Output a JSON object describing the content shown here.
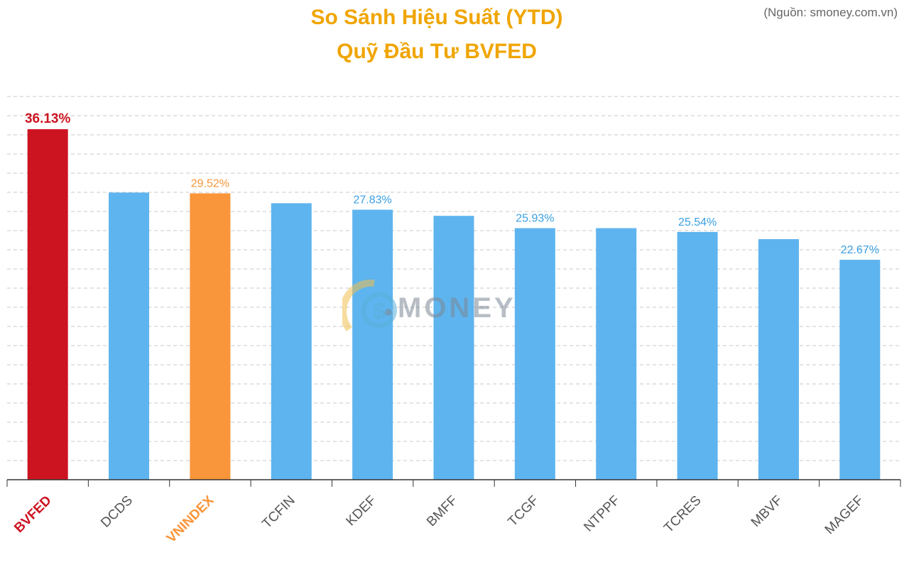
{
  "header": {
    "title_line1": "So Sánh Hiệu Suất (YTD)",
    "title_line2": "Quỹ Đầu Tư BVFED",
    "source": "(Nguồn: smoney.com.vn)"
  },
  "watermark": {
    "text": "MONEY",
    "icon": "dollar-coin-icon"
  },
  "colors": {
    "title": "#f0a500",
    "highlight": "#cc1421",
    "index": "#f9953a",
    "default_bar": "#5eb4ee",
    "default_label": "#3aa0e4",
    "tick_text": "#555555",
    "grid": "#c8c8c8",
    "axis": "#333333"
  },
  "chart_data": {
    "type": "bar",
    "title": "So Sánh Hiệu Suất (YTD)",
    "subtitle": "Quỹ Đầu Tư BVFED",
    "categories": [
      "BVFED",
      "DCDS",
      "VNINDEX",
      "TCFIN",
      "KDEF",
      "BMFF",
      "TCGF",
      "NTPPF",
      "TCRES",
      "MBVF",
      "MAGEF"
    ],
    "values": [
      36.13,
      29.6,
      29.52,
      28.5,
      27.83,
      27.2,
      25.93,
      25.93,
      25.54,
      24.8,
      22.67
    ],
    "data_labels": [
      "36.13%",
      "",
      "29.52%",
      "",
      "27.83%",
      "",
      "25.93%",
      "",
      "25.54%",
      "",
      "22.67%"
    ],
    "highlight": {
      "BVFED": "highlight",
      "VNINDEX": "index"
    },
    "ylim": [
      0,
      39.5
    ],
    "grid": true,
    "xlabel": "",
    "ylabel": ""
  }
}
